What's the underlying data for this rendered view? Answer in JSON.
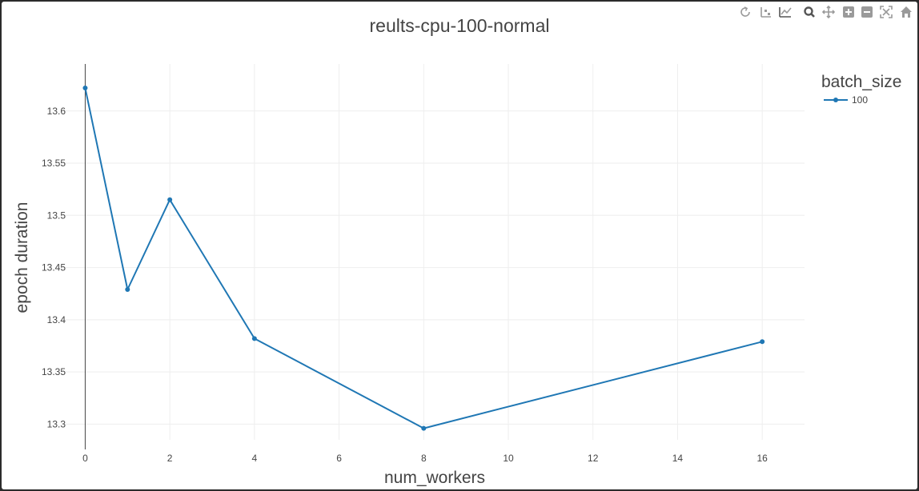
{
  "chart_data": {
    "type": "line",
    "title": "reults-cpu-100-normal",
    "xlabel": "num_workers",
    "ylabel": "epoch duration",
    "x_ticks": [
      0,
      2,
      4,
      6,
      8,
      10,
      12,
      14,
      16
    ],
    "y_ticks": [
      13.3,
      13.35,
      13.4,
      13.45,
      13.5,
      13.55,
      13.6
    ],
    "xlim": [
      -0.5,
      17
    ],
    "ylim": [
      13.285,
      13.645
    ],
    "grid": true,
    "legend": {
      "title": "batch_size",
      "placement": "top-right"
    },
    "series": [
      {
        "name": "100",
        "color": "#1f77b4",
        "x": [
          0,
          1,
          2,
          4,
          8,
          16
        ],
        "y": [
          13.622,
          13.429,
          13.515,
          13.382,
          13.296,
          13.379
        ]
      }
    ]
  },
  "modebar": {
    "icons": [
      "reset-icon",
      "compare-hover-icon",
      "spike-lines-icon",
      "zoom-icon",
      "pan-icon",
      "zoom-in-icon",
      "zoom-out-icon",
      "autoscale-icon",
      "home-icon"
    ]
  }
}
